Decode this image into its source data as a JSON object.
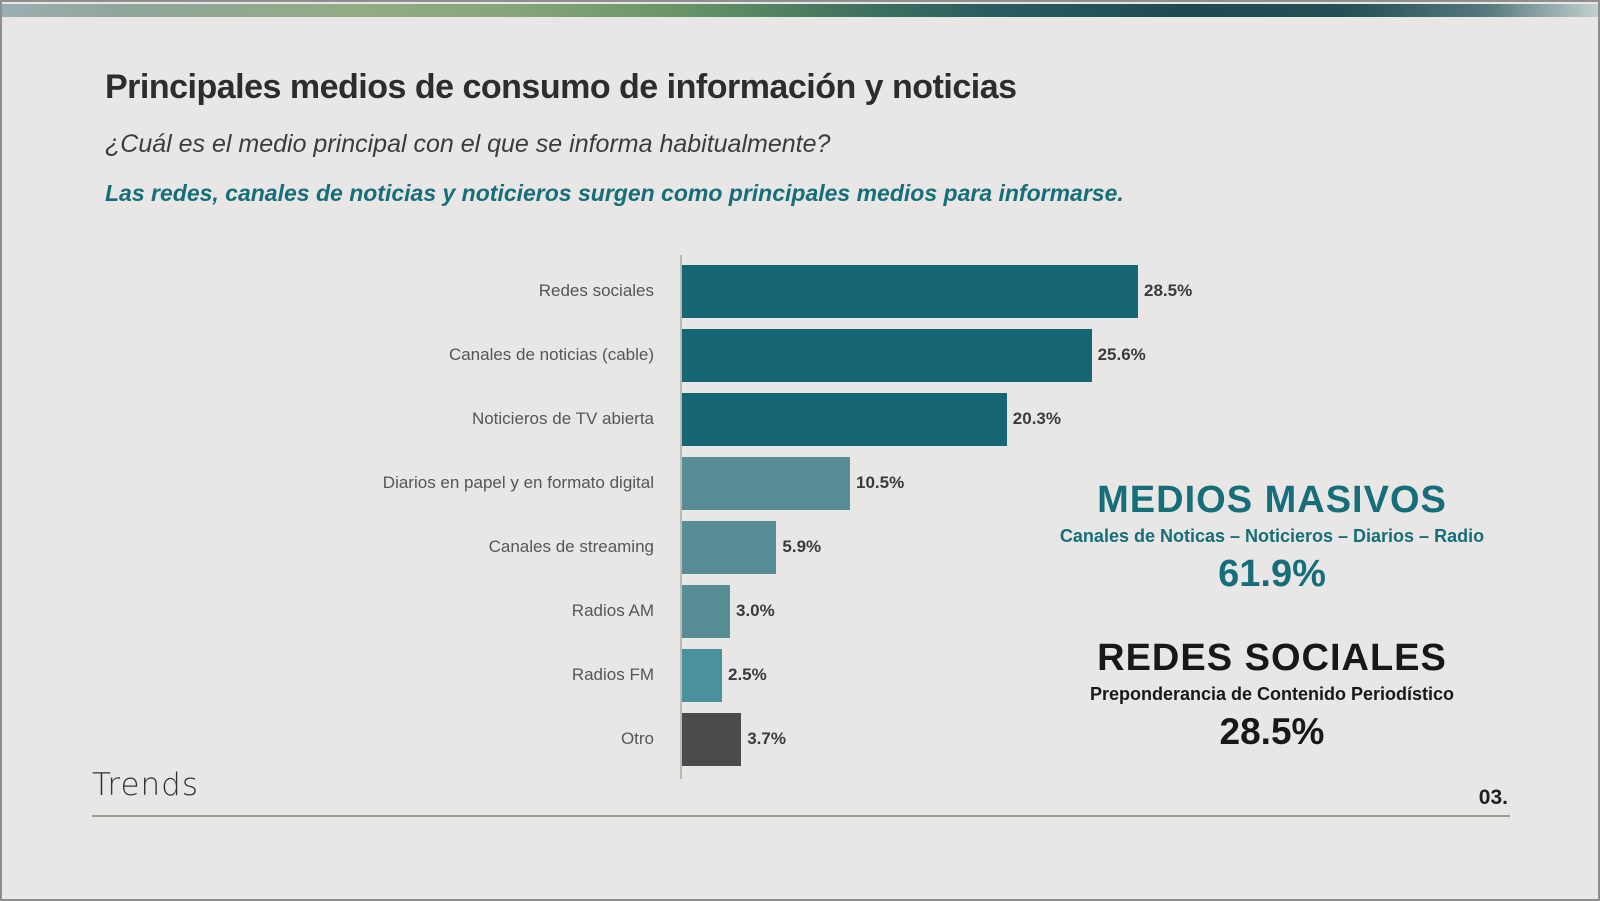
{
  "slide": {
    "title": "Principales medios de consumo de información y noticias",
    "subtitle": "¿Cuál es el medio principal con el que se informa habitualmente?",
    "highlight": "Las redes, canales de noticias y noticieros surgen como principales medios para informarse.",
    "footer_brand": "Trends",
    "page_number": "03."
  },
  "colors": {
    "accent_teal": "#156e79",
    "bar_dark_teal": "#176673",
    "bar_mid_teal": "#578e96",
    "bar_bright_teal": "#4a919d",
    "bar_dark_gray": "#4b4b4d",
    "background": "#e8e7e5",
    "text_dark": "#2d2d2d",
    "category_label_gray": "#565656"
  },
  "chart_data": {
    "type": "bar",
    "orientation": "horizontal",
    "title": "",
    "xlabel": "",
    "ylabel": "",
    "xlim": [
      0,
      30
    ],
    "grid": false,
    "legend": false,
    "categories": [
      "Redes sociales",
      "Canales de noticias (cable)",
      "Noticieros de TV abierta",
      "Diarios en papel y en formato digital",
      "Canales de streaming",
      "Radios AM",
      "Radios FM",
      "Otro"
    ],
    "values": [
      28.5,
      25.6,
      20.3,
      10.5,
      5.9,
      3.0,
      2.5,
      3.7
    ],
    "value_labels": [
      "28.5%",
      "25.6%",
      "20.3%",
      "10.5%",
      "5.9%",
      "3.0%",
      "2.5%",
      "3.7%"
    ],
    "bar_colors": [
      "#176673",
      "#176673",
      "#176673",
      "#578e96",
      "#578e96",
      "#578e96",
      "#4a919d",
      "#4b4b4d"
    ]
  },
  "callouts": {
    "medios_masivos": {
      "title": "MEDIOS MASIVOS",
      "subtitle": "Canales de Noticas – Noticieros – Diarios – Radio",
      "value": "61.9%"
    },
    "redes_sociales": {
      "title": "REDES SOCIALES",
      "subtitle": "Preponderancia de Contenido Periodístico",
      "value": "28.5%"
    }
  }
}
